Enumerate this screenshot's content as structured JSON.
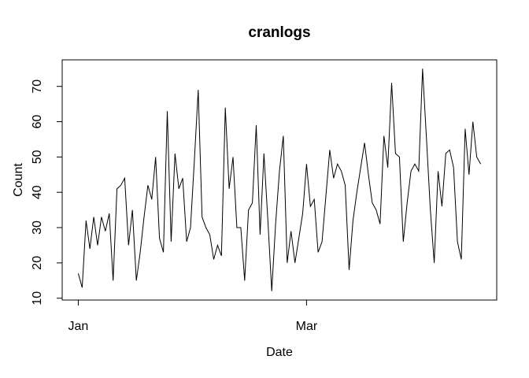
{
  "window": {
    "title": "cranlogs plot"
  },
  "chart_data": {
    "type": "line",
    "title": "cranlogs",
    "xlabel": "Date",
    "ylabel": "Count",
    "line_color": "#000000",
    "background_color": "#ffffff",
    "grid": false,
    "legend": "none",
    "x_tick_labels": [
      "Jan",
      "Mar"
    ],
    "x_ticks": [
      {
        "label": "Jan",
        "x": 0
      },
      {
        "label": "Mar",
        "x": 59
      }
    ],
    "y_ticks": [
      10,
      20,
      30,
      40,
      50,
      60,
      70
    ],
    "x_range": [
      -4.16,
      108.16
    ],
    "y_range": [
      9.48,
      77.52
    ],
    "ylim_data": [
      12,
      75
    ],
    "n_points": 105,
    "x_description": "daily values, day 0 = Jan tick, day 59 = Mar tick",
    "values": [
      17,
      13,
      32,
      24,
      33,
      25,
      33,
      29,
      34,
      15,
      41,
      42,
      44,
      25,
      35,
      15,
      23,
      33,
      42,
      38,
      50,
      27,
      23,
      63,
      26,
      51,
      41,
      44,
      26,
      30,
      49,
      69,
      33,
      30,
      28,
      21,
      25,
      22,
      64,
      41,
      50,
      30,
      30,
      15,
      35,
      37,
      59,
      28,
      51,
      32,
      12,
      31,
      46,
      56,
      20,
      29,
      20,
      27,
      34,
      48,
      36,
      38,
      23,
      26,
      39,
      52,
      44,
      48,
      46,
      42,
      18,
      32,
      40,
      47,
      54,
      45,
      37,
      35,
      31,
      56,
      47,
      71,
      51,
      50,
      26,
      37,
      46,
      48,
      46,
      75,
      55,
      35,
      20,
      46,
      36,
      51,
      52,
      47,
      26,
      21,
      58,
      45,
      60,
      50,
      48
    ]
  }
}
